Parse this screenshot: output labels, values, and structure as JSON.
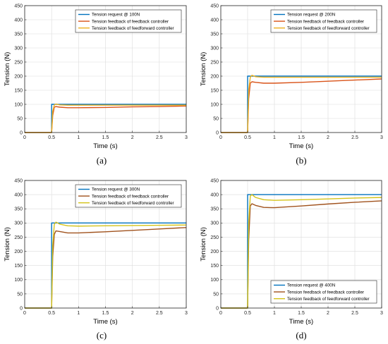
{
  "chart_data": [
    {
      "type": "line",
      "panel_label": "(a)",
      "xlabel": "Time (s)",
      "ylabel": "Tension (N)",
      "xlim": [
        0,
        3
      ],
      "ylim": [
        0,
        450
      ],
      "xticks": [
        "0",
        "0.5",
        "1",
        "1.5",
        "2",
        "2.5",
        "3"
      ],
      "yticks": [
        "0",
        "50",
        "100",
        "150",
        "200",
        "250",
        "300",
        "350",
        "400",
        "450"
      ],
      "grid": true,
      "legend_position": "top-right",
      "series": [
        {
          "name": "Tension request @ 100N",
          "color": "#0072bd",
          "x": [
            0,
            0.5,
            0.5,
            3.0
          ],
          "y": [
            0,
            0,
            100,
            100
          ]
        },
        {
          "name": "Tension feedback of feedback controller",
          "color": "#d95319",
          "x": [
            0,
            0.5,
            0.52,
            0.55,
            0.58,
            0.65,
            0.8,
            1.0,
            1.5,
            2.0,
            2.5,
            3.0
          ],
          "y": [
            0,
            0,
            60,
            90,
            92,
            90,
            88,
            88,
            89,
            91,
            92,
            94
          ]
        },
        {
          "name": "Tension feedback of feedforward controller",
          "color": "#edb120",
          "x": [
            0,
            0.5,
            0.52,
            0.55,
            0.58,
            0.65,
            0.8,
            1.0,
            1.5,
            2.0,
            2.5,
            3.0
          ],
          "y": [
            0,
            0,
            75,
            98,
            101,
            98,
            97,
            97,
            97,
            97,
            97,
            97
          ]
        }
      ]
    },
    {
      "type": "line",
      "panel_label": "(b)",
      "xlabel": "Time (s)",
      "ylabel": "Tension (N)",
      "xlim": [
        0,
        3
      ],
      "ylim": [
        0,
        450
      ],
      "xticks": [
        "0",
        "0.5",
        "1",
        "1.5",
        "2",
        "2.5",
        "3"
      ],
      "yticks": [
        "0",
        "50",
        "100",
        "150",
        "200",
        "250",
        "300",
        "350",
        "400",
        "450"
      ],
      "grid": true,
      "legend_position": "top-right",
      "series": [
        {
          "name": "Tension request @ 200N",
          "color": "#0072bd",
          "x": [
            0,
            0.5,
            0.5,
            3.0
          ],
          "y": [
            0,
            0,
            200,
            200
          ]
        },
        {
          "name": "Tension feedback of feedback controller",
          "color": "#d95319",
          "x": [
            0,
            0.5,
            0.52,
            0.55,
            0.58,
            0.65,
            0.8,
            1.0,
            1.5,
            2.0,
            2.5,
            3.0
          ],
          "y": [
            0,
            0,
            120,
            175,
            180,
            178,
            175,
            175,
            178,
            182,
            186,
            190
          ]
        },
        {
          "name": "Tension feedback of feedforward controller",
          "color": "#edb120",
          "x": [
            0,
            0.5,
            0.52,
            0.55,
            0.58,
            0.65,
            0.8,
            1.0,
            1.5,
            2.0,
            2.5,
            3.0
          ],
          "y": [
            0,
            0,
            150,
            196,
            203,
            198,
            196,
            196,
            196,
            196,
            196,
            196
          ]
        }
      ]
    },
    {
      "type": "line",
      "panel_label": "(c)",
      "xlabel": "Time (s)",
      "ylabel": "Tension (N)",
      "xlim": [
        0,
        3
      ],
      "ylim": [
        0,
        450
      ],
      "xticks": [
        "0",
        "0.5",
        "1",
        "1.5",
        "2",
        "2.5",
        "3"
      ],
      "yticks": [
        "0",
        "50",
        "100",
        "150",
        "200",
        "250",
        "300",
        "350",
        "400",
        "450"
      ],
      "grid": true,
      "legend_position": "top-right",
      "series": [
        {
          "name": "Tension request @ 300N",
          "color": "#0072bd",
          "x": [
            0,
            0.5,
            0.5,
            3.0
          ],
          "y": [
            0,
            0,
            300,
            300
          ]
        },
        {
          "name": "Tension feedback of feedback controller",
          "color": "#a0521d",
          "x": [
            0,
            0.5,
            0.52,
            0.55,
            0.58,
            0.65,
            0.8,
            1.0,
            1.5,
            2.0,
            2.5,
            3.0
          ],
          "y": [
            0,
            0,
            180,
            260,
            272,
            270,
            265,
            265,
            269,
            274,
            279,
            284
          ]
        },
        {
          "name": "Tension feedback of feedforward controller",
          "color": "#d4c31a",
          "x": [
            0,
            0.5,
            0.52,
            0.55,
            0.58,
            0.65,
            0.8,
            1.0,
            1.5,
            2.0,
            2.5,
            3.0
          ],
          "y": [
            0,
            0,
            220,
            295,
            303,
            296,
            290,
            289,
            290,
            291,
            292,
            293
          ]
        }
      ]
    },
    {
      "type": "line",
      "panel_label": "(d)",
      "xlabel": "Time (s)",
      "ylabel": "Tension (N)",
      "xlim": [
        0,
        3
      ],
      "ylim": [
        0,
        450
      ],
      "xticks": [
        "0",
        "0.5",
        "1",
        "1.5",
        "2",
        "2.5",
        "3"
      ],
      "yticks": [
        "0",
        "50",
        "100",
        "150",
        "200",
        "250",
        "300",
        "350",
        "400",
        "450"
      ],
      "grid": true,
      "legend_position": "bottom-right",
      "series": [
        {
          "name": "Tension request @ 400N",
          "color": "#0072bd",
          "x": [
            0,
            0.5,
            0.5,
            3.0
          ],
          "y": [
            0,
            0,
            400,
            400
          ]
        },
        {
          "name": "Tension feedback of feedback controller",
          "color": "#a0521d",
          "x": [
            0,
            0.5,
            0.52,
            0.55,
            0.58,
            0.65,
            0.8,
            1.0,
            1.5,
            2.0,
            2.5,
            3.0
          ],
          "y": [
            0,
            0,
            240,
            360,
            368,
            362,
            355,
            354,
            360,
            367,
            373,
            378
          ]
        },
        {
          "name": "Tension feedback of feedforward controller",
          "color": "#d4c31a",
          "x": [
            0,
            0.5,
            0.52,
            0.55,
            0.58,
            0.65,
            0.8,
            1.0,
            1.5,
            2.0,
            2.5,
            3.0
          ],
          "y": [
            0,
            0,
            300,
            395,
            400,
            390,
            382,
            380,
            382,
            385,
            388,
            390
          ]
        }
      ]
    }
  ]
}
